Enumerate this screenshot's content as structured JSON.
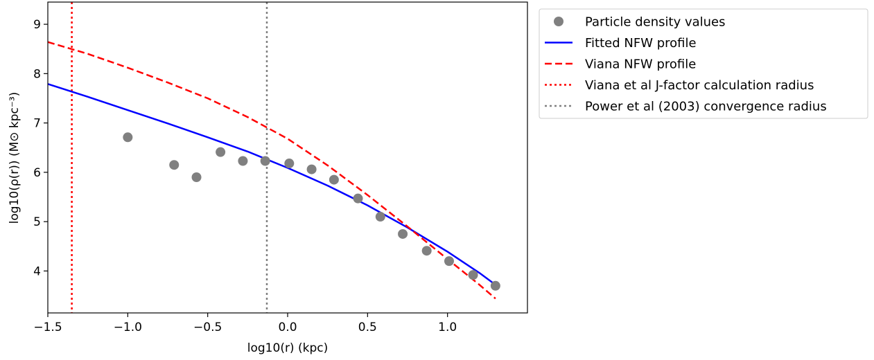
{
  "chart_data": {
    "type": "scatter",
    "xlabel": "log10(r) (kpc)",
    "ylabel": "log10(ρ(r)) (M⊙ kpc⁻³)",
    "xlim": [
      -1.5,
      1.5
    ],
    "ylim": [
      3.15,
      9.45
    ],
    "xticks": [
      -1.5,
      -1.0,
      -0.5,
      0.0,
      0.5,
      1.0
    ],
    "xtick_labels": [
      "−1.5",
      "−1.0",
      "−0.5",
      "0.0",
      "0.5",
      "1.0"
    ],
    "yticks": [
      4,
      5,
      6,
      7,
      8,
      9
    ],
    "ytick_labels": [
      "4",
      "5",
      "6",
      "7",
      "8",
      "9"
    ],
    "grid": false,
    "legend_position": "outside-right",
    "series": [
      {
        "name": "Particle density values",
        "kind": "scatter",
        "color": "#808080",
        "points": [
          [
            -1.0,
            6.71
          ],
          [
            -0.71,
            6.15
          ],
          [
            -0.57,
            5.9
          ],
          [
            -0.42,
            6.41
          ],
          [
            -0.28,
            6.23
          ],
          [
            -0.14,
            6.23
          ],
          [
            0.01,
            6.18
          ],
          [
            0.15,
            6.06
          ],
          [
            0.29,
            5.85
          ],
          [
            0.44,
            5.47
          ],
          [
            0.58,
            5.1
          ],
          [
            0.72,
            4.75
          ],
          [
            0.87,
            4.41
          ],
          [
            1.01,
            4.2
          ],
          [
            1.16,
            3.92
          ],
          [
            1.3,
            3.7
          ]
        ]
      },
      {
        "name": "Fitted NFW profile",
        "kind": "line",
        "style": "solid",
        "color": "#0000ff",
        "points": [
          [
            -1.5,
            7.79
          ],
          [
            -1.25,
            7.53
          ],
          [
            -1.0,
            7.26
          ],
          [
            -0.75,
            6.99
          ],
          [
            -0.5,
            6.71
          ],
          [
            -0.25,
            6.42
          ],
          [
            0.0,
            6.09
          ],
          [
            0.25,
            5.73
          ],
          [
            0.5,
            5.33
          ],
          [
            0.75,
            4.88
          ],
          [
            1.0,
            4.39
          ],
          [
            1.2,
            3.96
          ],
          [
            1.3,
            3.72
          ]
        ]
      },
      {
        "name": "Viana NFW profile",
        "kind": "line",
        "style": "dashed",
        "color": "#ff0000",
        "points": [
          [
            -1.5,
            8.64
          ],
          [
            -1.25,
            8.4
          ],
          [
            -1.0,
            8.12
          ],
          [
            -0.75,
            7.82
          ],
          [
            -0.5,
            7.5
          ],
          [
            -0.25,
            7.12
          ],
          [
            0.0,
            6.68
          ],
          [
            0.25,
            6.14
          ],
          [
            0.5,
            5.54
          ],
          [
            0.75,
            4.9
          ],
          [
            1.0,
            4.24
          ],
          [
            1.2,
            3.72
          ],
          [
            1.3,
            3.44
          ]
        ]
      },
      {
        "name": "Viana et al J-factor calculation radius",
        "kind": "vline",
        "style": "dotted",
        "color": "#ff0000",
        "x": -1.35
      },
      {
        "name": "Power et al (2003) convergence radius",
        "kind": "vline",
        "style": "dotted",
        "color": "#808080",
        "x": -0.13
      }
    ]
  }
}
